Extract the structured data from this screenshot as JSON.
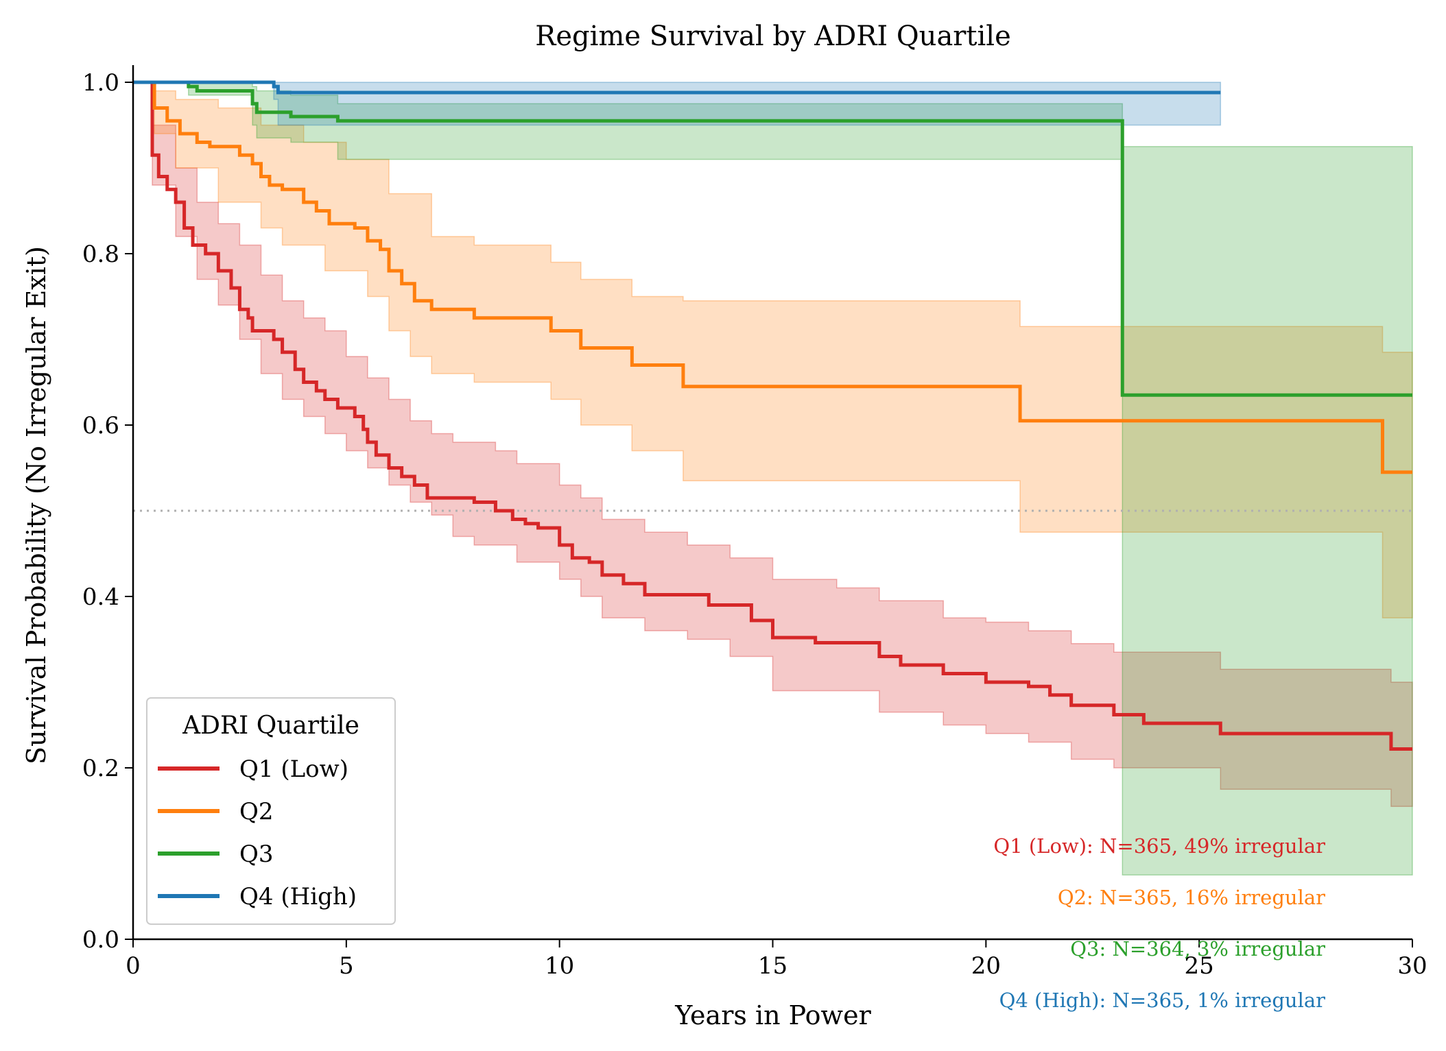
{
  "chart_data": {
    "type": "line",
    "title": "Regime Survival by ADRI Quartile",
    "xlabel": "Years in Power",
    "ylabel": "Survival Probability (No Irregular Exit)",
    "xlim": [
      0,
      30
    ],
    "ylim": [
      0,
      1.02
    ],
    "xticks": [
      0,
      5,
      10,
      15,
      20,
      25,
      30
    ],
    "xtick_labels": [
      "0",
      "5",
      "10",
      "15",
      "20",
      "25",
      "30"
    ],
    "yticks": [
      0.0,
      0.2,
      0.4,
      0.6,
      0.8,
      1.0
    ],
    "ytick_labels": [
      "0.0",
      "0.2",
      "0.4",
      "0.6",
      "0.8",
      "1.0"
    ],
    "reference_line": {
      "y": 0.5,
      "style": "dotted",
      "color": "#b0b0b0"
    },
    "grid": false,
    "legend": {
      "title": "ADRI Quartile",
      "placement": "lower-left",
      "entries": [
        "Q1 (Low)",
        "Q2",
        "Q3",
        "Q4 (High)"
      ]
    },
    "series": [
      {
        "name": "Q1 (Low)",
        "color": "#d62728",
        "survival": [
          [
            0,
            1.0
          ],
          [
            0.45,
            0.915
          ],
          [
            0.6,
            0.89
          ],
          [
            0.8,
            0.875
          ],
          [
            1.0,
            0.86
          ],
          [
            1.2,
            0.83
          ],
          [
            1.4,
            0.81
          ],
          [
            1.7,
            0.8
          ],
          [
            2.0,
            0.78
          ],
          [
            2.3,
            0.76
          ],
          [
            2.5,
            0.735
          ],
          [
            2.7,
            0.725
          ],
          [
            2.8,
            0.71
          ],
          [
            3.3,
            0.7
          ],
          [
            3.5,
            0.685
          ],
          [
            3.8,
            0.665
          ],
          [
            4.0,
            0.65
          ],
          [
            4.3,
            0.64
          ],
          [
            4.5,
            0.63
          ],
          [
            4.8,
            0.62
          ],
          [
            5.2,
            0.61
          ],
          [
            5.4,
            0.595
          ],
          [
            5.5,
            0.58
          ],
          [
            5.7,
            0.565
          ],
          [
            6.0,
            0.55
          ],
          [
            6.3,
            0.54
          ],
          [
            6.6,
            0.53
          ],
          [
            6.9,
            0.515
          ],
          [
            8.0,
            0.51
          ],
          [
            8.5,
            0.5
          ],
          [
            8.9,
            0.49
          ],
          [
            9.2,
            0.485
          ],
          [
            9.5,
            0.48
          ],
          [
            10.0,
            0.46
          ],
          [
            10.3,
            0.445
          ],
          [
            10.7,
            0.44
          ],
          [
            11.0,
            0.425
          ],
          [
            11.5,
            0.415
          ],
          [
            12.0,
            0.402
          ],
          [
            13.5,
            0.39
          ],
          [
            14.5,
            0.372
          ],
          [
            15.0,
            0.352
          ],
          [
            16.0,
            0.346
          ],
          [
            17.5,
            0.33
          ],
          [
            18.0,
            0.32
          ],
          [
            19.0,
            0.31
          ],
          [
            20.0,
            0.3
          ],
          [
            21.0,
            0.295
          ],
          [
            21.5,
            0.285
          ],
          [
            22.0,
            0.273
          ],
          [
            23.0,
            0.262
          ],
          [
            23.7,
            0.252
          ],
          [
            25.5,
            0.24
          ],
          [
            29.5,
            0.222
          ],
          [
            30,
            0.222
          ]
        ],
        "ci_lower": [
          [
            0,
            1.0
          ],
          [
            0.45,
            0.88
          ],
          [
            1.0,
            0.82
          ],
          [
            1.5,
            0.77
          ],
          [
            2.0,
            0.74
          ],
          [
            2.5,
            0.7
          ],
          [
            3.0,
            0.66
          ],
          [
            3.5,
            0.63
          ],
          [
            4.0,
            0.61
          ],
          [
            4.5,
            0.59
          ],
          [
            5.0,
            0.57
          ],
          [
            5.5,
            0.55
          ],
          [
            6.0,
            0.53
          ],
          [
            6.5,
            0.51
          ],
          [
            7.0,
            0.495
          ],
          [
            7.5,
            0.47
          ],
          [
            8.0,
            0.46
          ],
          [
            9.0,
            0.44
          ],
          [
            10.0,
            0.42
          ],
          [
            10.5,
            0.4
          ],
          [
            11.0,
            0.375
          ],
          [
            12.0,
            0.36
          ],
          [
            13.0,
            0.35
          ],
          [
            14.0,
            0.33
          ],
          [
            15.0,
            0.29
          ],
          [
            17.5,
            0.265
          ],
          [
            19.0,
            0.25
          ],
          [
            20.0,
            0.24
          ],
          [
            21.0,
            0.23
          ],
          [
            22.0,
            0.21
          ],
          [
            23.0,
            0.2
          ],
          [
            25.5,
            0.175
          ],
          [
            29.5,
            0.155
          ],
          [
            30,
            0.155
          ]
        ],
        "ci_upper": [
          [
            0,
            1.0
          ],
          [
            0.45,
            0.95
          ],
          [
            1.0,
            0.9
          ],
          [
            1.5,
            0.86
          ],
          [
            2.0,
            0.835
          ],
          [
            2.5,
            0.81
          ],
          [
            3.0,
            0.775
          ],
          [
            3.5,
            0.745
          ],
          [
            4.0,
            0.725
          ],
          [
            4.5,
            0.71
          ],
          [
            5.0,
            0.68
          ],
          [
            5.5,
            0.655
          ],
          [
            6.0,
            0.63
          ],
          [
            6.5,
            0.605
          ],
          [
            7.0,
            0.59
          ],
          [
            7.5,
            0.58
          ],
          [
            8.5,
            0.57
          ],
          [
            9.0,
            0.555
          ],
          [
            10.0,
            0.53
          ],
          [
            10.5,
            0.515
          ],
          [
            11.0,
            0.49
          ],
          [
            12.0,
            0.475
          ],
          [
            13.0,
            0.46
          ],
          [
            14.0,
            0.445
          ],
          [
            15.0,
            0.42
          ],
          [
            16.5,
            0.41
          ],
          [
            17.5,
            0.395
          ],
          [
            19.0,
            0.375
          ],
          [
            20.0,
            0.37
          ],
          [
            21.0,
            0.36
          ],
          [
            22.0,
            0.345
          ],
          [
            23.0,
            0.335
          ],
          [
            25.5,
            0.315
          ],
          [
            29.5,
            0.3
          ],
          [
            30,
            0.3
          ]
        ]
      },
      {
        "name": "Q2",
        "color": "#ff7f0e",
        "survival": [
          [
            0,
            1.0
          ],
          [
            0.5,
            0.97
          ],
          [
            0.8,
            0.955
          ],
          [
            1.1,
            0.94
          ],
          [
            1.5,
            0.93
          ],
          [
            1.8,
            0.925
          ],
          [
            2.5,
            0.915
          ],
          [
            2.8,
            0.905
          ],
          [
            3.0,
            0.89
          ],
          [
            3.2,
            0.88
          ],
          [
            3.5,
            0.875
          ],
          [
            4.0,
            0.86
          ],
          [
            4.3,
            0.85
          ],
          [
            4.6,
            0.835
          ],
          [
            5.2,
            0.83
          ],
          [
            5.5,
            0.815
          ],
          [
            5.8,
            0.805
          ],
          [
            6.0,
            0.78
          ],
          [
            6.3,
            0.765
          ],
          [
            6.6,
            0.745
          ],
          [
            7.0,
            0.735
          ],
          [
            8.0,
            0.725
          ],
          [
            9.8,
            0.71
          ],
          [
            10.5,
            0.69
          ],
          [
            11.7,
            0.67
          ],
          [
            12.9,
            0.645
          ],
          [
            20.8,
            0.605
          ],
          [
            29.3,
            0.545
          ],
          [
            30,
            0.545
          ]
        ],
        "ci_lower": [
          [
            0,
            1.0
          ],
          [
            0.5,
            0.94
          ],
          [
            1.0,
            0.9
          ],
          [
            2.0,
            0.86
          ],
          [
            3.0,
            0.83
          ],
          [
            3.5,
            0.81
          ],
          [
            4.5,
            0.78
          ],
          [
            5.5,
            0.75
          ],
          [
            6.0,
            0.71
          ],
          [
            6.5,
            0.68
          ],
          [
            7.0,
            0.66
          ],
          [
            8.0,
            0.65
          ],
          [
            9.8,
            0.63
          ],
          [
            10.5,
            0.6
          ],
          [
            11.7,
            0.57
          ],
          [
            12.9,
            0.535
          ],
          [
            20.8,
            0.475
          ],
          [
            29.3,
            0.375
          ],
          [
            30,
            0.375
          ]
        ],
        "ci_upper": [
          [
            0,
            1.0
          ],
          [
            0.5,
            0.99
          ],
          [
            1.0,
            0.98
          ],
          [
            2.0,
            0.97
          ],
          [
            3.0,
            0.95
          ],
          [
            4.0,
            0.93
          ],
          [
            5.0,
            0.91
          ],
          [
            6.0,
            0.87
          ],
          [
            7.0,
            0.82
          ],
          [
            8.0,
            0.81
          ],
          [
            9.8,
            0.79
          ],
          [
            10.5,
            0.77
          ],
          [
            11.7,
            0.75
          ],
          [
            12.9,
            0.745
          ],
          [
            20.8,
            0.715
          ],
          [
            29.3,
            0.685
          ],
          [
            30,
            0.685
          ]
        ]
      },
      {
        "name": "Q3",
        "color": "#2ca02c",
        "survival": [
          [
            0,
            1.0
          ],
          [
            1.3,
            0.995
          ],
          [
            1.5,
            0.99
          ],
          [
            2.8,
            0.975
          ],
          [
            2.9,
            0.965
          ],
          [
            3.7,
            0.96
          ],
          [
            4.8,
            0.955
          ],
          [
            23.2,
            0.635
          ],
          [
            30,
            0.635
          ]
        ],
        "ci_lower": [
          [
            0,
            1.0
          ],
          [
            1.3,
            0.985
          ],
          [
            2.8,
            0.95
          ],
          [
            2.9,
            0.935
          ],
          [
            3.7,
            0.93
          ],
          [
            4.8,
            0.91
          ],
          [
            23.2,
            0.075
          ],
          [
            30,
            0.075
          ]
        ],
        "ci_upper": [
          [
            0,
            1.0
          ],
          [
            2.8,
            0.995
          ],
          [
            2.9,
            0.99
          ],
          [
            3.7,
            0.985
          ],
          [
            4.8,
            0.975
          ],
          [
            23.2,
            0.925
          ],
          [
            30,
            0.925
          ]
        ]
      },
      {
        "name": "Q4 (High)",
        "color": "#1f77b4",
        "survival": [
          [
            0,
            1.0
          ],
          [
            3.3,
            0.995
          ],
          [
            3.4,
            0.988
          ],
          [
            25.5,
            0.988
          ]
        ],
        "ci_lower": [
          [
            0,
            1.0
          ],
          [
            3.3,
            0.98
          ],
          [
            3.4,
            0.95
          ],
          [
            25.5,
            0.95
          ]
        ],
        "ci_upper": [
          [
            0,
            1.0
          ],
          [
            25.5,
            1.0
          ]
        ]
      }
    ],
    "annotations": [
      {
        "text": "Q1 (Low): N=365, 49% irregular",
        "color": "#d62728"
      },
      {
        "text": "Q2: N=365, 16% irregular",
        "color": "#ff7f0e"
      },
      {
        "text": "Q3: N=364, 3% irregular",
        "color": "#2ca02c"
      },
      {
        "text": "Q4 (High): N=365, 1% irregular",
        "color": "#1f77b4"
      }
    ]
  }
}
